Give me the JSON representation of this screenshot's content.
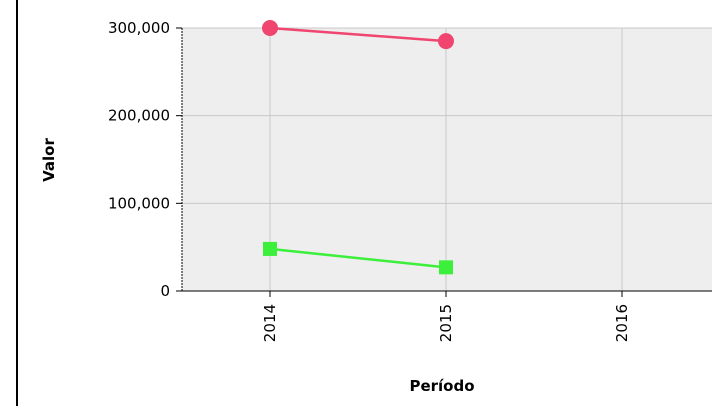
{
  "chart_data": {
    "type": "line",
    "title": "",
    "xlabel": "Período",
    "ylabel": "Valor",
    "categories": [
      "2014",
      "2015",
      "2016"
    ],
    "ylim": [
      0,
      300000
    ],
    "yticks": [
      0,
      100000,
      200000,
      300000
    ],
    "ytick_labels": [
      "0",
      "100,000",
      "200,000",
      "300,000"
    ],
    "grid": true,
    "series": [
      {
        "values": [
          300000,
          285000,
          null
        ],
        "color": "#f0456e",
        "marker": "circle"
      },
      {
        "values": [
          48000,
          27000,
          null
        ],
        "color": "#3bef3b",
        "marker": "square"
      }
    ],
    "colors": {
      "plot_background": "#eeeeee",
      "grid": "#c8c8c8",
      "axis": "#000000"
    }
  }
}
